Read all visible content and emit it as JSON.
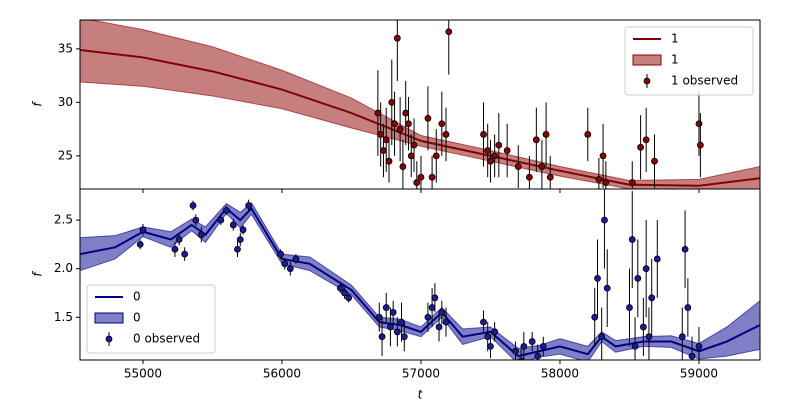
{
  "chart_data": [
    {
      "type": "line",
      "ylabel": "f",
      "xlim": [
        54547,
        59439
      ],
      "ylim": [
        21.9,
        37.7
      ],
      "xticks": [
        55000,
        56000,
        57000,
        58000,
        59000
      ],
      "yticks": [
        25,
        30,
        35
      ],
      "legend": "upper right",
      "series": [
        {
          "name": "1",
          "color": "#7a0000",
          "x": [
            54547,
            55000,
            55500,
            56000,
            56500,
            57000,
            57500,
            58000,
            58500,
            59000,
            59439
          ],
          "values": [
            34.9,
            34.2,
            32.9,
            31.2,
            29.0,
            26.4,
            25.0,
            23.6,
            22.3,
            22.2,
            22.9
          ]
        },
        {
          "name": "1",
          "color": "#8b0000",
          "x": [
            54547,
            55000,
            55500,
            56000,
            56500,
            57000,
            57500,
            58000,
            58500,
            59000,
            59439
          ],
          "upper": [
            37.9,
            36.8,
            35.2,
            33.0,
            30.4,
            26.9,
            25.5,
            24.0,
            22.7,
            22.8,
            24.0
          ],
          "lower": [
            31.9,
            31.5,
            30.6,
            29.4,
            27.6,
            25.9,
            24.5,
            23.1,
            21.9,
            21.6,
            21.8
          ]
        },
        {
          "name": "1 observed",
          "color": "#8b0000",
          "x": [
            56690,
            56710,
            56730,
            56750,
            56770,
            56790,
            56810,
            56830,
            56850,
            56870,
            56890,
            56910,
            56930,
            56950,
            56970,
            57000,
            57050,
            57080,
            57110,
            57150,
            57180,
            57200,
            57450,
            57480,
            57500,
            57530,
            57560,
            57620,
            57700,
            57780,
            57830,
            57870,
            57900,
            57930,
            58200,
            58280,
            58310,
            58330,
            58520,
            58580,
            58620,
            58680,
            59000,
            59010
          ],
          "values": [
            29,
            27,
            25.5,
            26.5,
            24.5,
            30,
            28,
            36,
            27.5,
            24,
            29,
            28,
            25,
            26,
            22.5,
            23,
            28.5,
            23,
            25,
            28,
            27,
            36.6,
            27,
            25.5,
            24.5,
            25,
            26,
            25.5,
            24,
            23,
            26.5,
            24,
            27,
            23,
            27,
            22.8,
            25,
            22.5,
            22.5,
            25.8,
            26.5,
            24.5,
            28,
            26
          ],
          "errors": [
            4,
            3,
            2.5,
            3,
            2,
            4,
            3,
            4,
            3,
            2.5,
            3,
            2.5,
            2,
            2.5,
            2,
            2,
            3,
            2,
            2.5,
            3,
            2.5,
            4,
            3,
            2.5,
            2,
            2,
            3,
            2.5,
            2,
            2,
            3,
            2.5,
            3,
            2,
            2.5,
            2,
            3,
            2,
            2,
            3,
            3,
            2.5,
            3,
            3
          ]
        }
      ]
    },
    {
      "type": "line",
      "xlabel": "t",
      "ylabel": "f",
      "xlim": [
        54547,
        59439
      ],
      "ylim": [
        1.06,
        2.82
      ],
      "xticks": [
        55000,
        56000,
        57000,
        58000,
        59000
      ],
      "yticks": [
        1.5,
        {
          "value": 2,
          "label": "2.0"
        },
        2.5
      ],
      "legend": "lower left",
      "series": [
        {
          "name": "0",
          "color": "#00007f",
          "x": [
            54547,
            54800,
            55000,
            55200,
            55350,
            55450,
            55600,
            55700,
            55780,
            56000,
            56200,
            56500,
            56700,
            56850,
            57000,
            57150,
            57300,
            57500,
            57700,
            57850,
            58000,
            58200,
            58300,
            58400,
            58600,
            58800,
            59000,
            59200,
            59439
          ],
          "values": [
            2.15,
            2.22,
            2.38,
            2.3,
            2.45,
            2.35,
            2.62,
            2.5,
            2.62,
            2.1,
            2.05,
            1.78,
            1.45,
            1.42,
            1.35,
            1.55,
            1.3,
            1.35,
            1.1,
            1.15,
            1.2,
            1.12,
            1.3,
            1.2,
            1.25,
            1.25,
            1.15,
            1.25,
            1.42
          ]
        },
        {
          "name": "0",
          "color": "#00008b",
          "x": [
            54547,
            54800,
            55000,
            55200,
            55350,
            55450,
            55600,
            55700,
            55780,
            56000,
            56200,
            56500,
            56700,
            56850,
            57000,
            57150,
            57300,
            57500,
            57700,
            57850,
            58000,
            58200,
            58300,
            58400,
            58600,
            58800,
            59000,
            59200,
            59439
          ],
          "upper": [
            2.32,
            2.34,
            2.43,
            2.38,
            2.51,
            2.43,
            2.67,
            2.58,
            2.68,
            2.15,
            2.12,
            1.83,
            1.5,
            1.48,
            1.4,
            1.6,
            1.38,
            1.4,
            1.18,
            1.21,
            1.28,
            1.2,
            1.35,
            1.26,
            1.3,
            1.31,
            1.23,
            1.4,
            1.67
          ],
          "lower": [
            1.98,
            2.1,
            2.33,
            2.22,
            2.39,
            2.27,
            2.57,
            2.42,
            2.56,
            2.05,
            1.98,
            1.73,
            1.4,
            1.36,
            1.3,
            1.5,
            1.22,
            1.3,
            1.02,
            1.09,
            1.12,
            1.04,
            1.25,
            1.14,
            1.2,
            1.19,
            1.07,
            1.1,
            1.17
          ]
        },
        {
          "name": "0 observed",
          "color": "#1a1a9c",
          "x": [
            54980,
            55000,
            55230,
            55260,
            55300,
            55360,
            55380,
            55420,
            55560,
            55600,
            55650,
            55680,
            55700,
            55720,
            55760,
            55990,
            56020,
            56060,
            56100,
            56420,
            56450,
            56480,
            56700,
            56720,
            56750,
            56780,
            56800,
            56830,
            56860,
            56880,
            57050,
            57080,
            57100,
            57130,
            57150,
            57180,
            57450,
            57480,
            57500,
            57530,
            57680,
            57720,
            57740,
            57800,
            57840,
            57880,
            58250,
            58270,
            58300,
            58320,
            58340,
            58500,
            58520,
            58540,
            58560,
            58600,
            58620,
            58640,
            58660,
            58700,
            58880,
            58900,
            58920,
            58950,
            59000
          ],
          "values": [
            2.25,
            2.4,
            2.2,
            2.3,
            2.15,
            2.65,
            2.5,
            2.35,
            2.5,
            2.6,
            2.45,
            2.2,
            2.3,
            2.4,
            2.65,
            2.15,
            2.05,
            2.0,
            2.1,
            1.8,
            1.75,
            1.7,
            1.5,
            1.3,
            1.6,
            1.4,
            1.55,
            1.35,
            1.45,
            1.3,
            1.5,
            1.6,
            1.7,
            1.4,
            1.55,
            1.45,
            1.45,
            1.3,
            1.2,
            1.35,
            1.15,
            1.05,
            1.2,
            1.25,
            1.1,
            1.2,
            1.5,
            1.9,
            1.3,
            2.5,
            1.8,
            1.6,
            2.3,
            1.2,
            1.9,
            1.4,
            2.0,
            1.3,
            1.7,
            2.1,
            1.3,
            2.2,
            1.6,
            1.1,
            1.2
          ],
          "errors": [
            0.05,
            0.06,
            0.08,
            0.06,
            0.07,
            0.05,
            0.06,
            0.08,
            0.05,
            0.05,
            0.06,
            0.08,
            0.07,
            0.05,
            0.06,
            0.05,
            0.06,
            0.07,
            0.05,
            0.05,
            0.06,
            0.05,
            0.15,
            0.2,
            0.15,
            0.2,
            0.12,
            0.15,
            0.2,
            0.15,
            0.15,
            0.2,
            0.15,
            0.15,
            0.12,
            0.15,
            0.12,
            0.15,
            0.12,
            0.1,
            0.1,
            0.12,
            0.15,
            0.1,
            0.12,
            0.1,
            0.3,
            0.4,
            0.3,
            0.5,
            0.4,
            0.4,
            0.5,
            0.3,
            0.4,
            0.3,
            0.5,
            0.3,
            0.4,
            0.4,
            0.3,
            0.4,
            0.3,
            0.2,
            0.2
          ]
        }
      ]
    }
  ]
}
